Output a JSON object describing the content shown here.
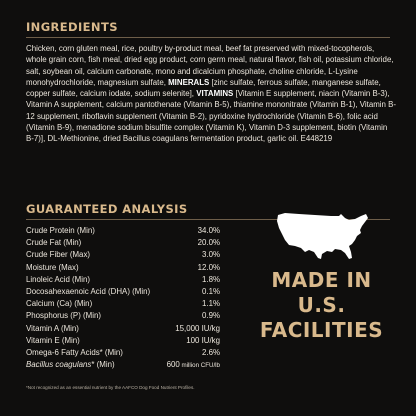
{
  "ingredients": {
    "heading": "INGREDIENTS",
    "text_1": "Chicken, corn gluten meal, rice, poultry by-product meal, beef fat preserved with mixed-tocopherols, whole grain corn, fish meal, dried egg product, corn germ meal, natural flavor, fish oil, potassium chloride, salt, soybean oil, calcium carbonate, mono and dicalcium phosphate, choline chloride, L-Lysine monohydrochloride, magnesium sulfate, ",
    "minerals_label": "MINERALS",
    "text_2": " [zinc sulfate, ferrous sulfate, manganese sulfate, copper sulfate, calcium iodate, sodium selenite], ",
    "vitamins_label": "VITAMINS",
    "text_3": " [Vitamin E supplement, niacin (Vitamin B-3), Vitamin A supplement, calcium pantothenate (Vitamin B-5), thiamine mononitrate (Vitamin B-1), Vitamin B-12 supplement, riboflavin supplement (Vitamin B-2), pyridoxine hydrochloride (Vitamin B-6), folic acid (Vitamin B-9), menadione sodium bisulfite complex (Vitamin K), Vitamin D-3 supplement, biotin (Vitamin B-7)], DL-Methionine, dried Bacillus coagulans fermentation product, garlic oil. E448219"
  },
  "analysis": {
    "heading": "GUARANTEED ANALYSIS",
    "rows": [
      {
        "label": "Crude Protein (Min)",
        "value": "34.0%"
      },
      {
        "label": "Crude Fat (Min)",
        "value": "20.0%"
      },
      {
        "label": "Crude Fiber (Max)",
        "value": "3.0%"
      },
      {
        "label": "Moisture (Max)",
        "value": "12.0%"
      },
      {
        "label": "Linoleic Acid (Min)",
        "value": "1.8%"
      },
      {
        "label": "Docosahexaenoic Acid (DHA) (Min)",
        "value": "0.1%"
      },
      {
        "label": "Calcium (Ca) (Min)",
        "value": "1.1%"
      },
      {
        "label": "Phosphorus (P) (Min)",
        "value": "0.9%"
      },
      {
        "label": "Vitamin A (Min)",
        "value": "15,000 IU/kg"
      },
      {
        "label": "Vitamin E (Min)",
        "value": "100 IU/kg"
      },
      {
        "label": "Omega-6 Fatty Acids* (Min)",
        "value": "2.6%"
      }
    ],
    "last_row": {
      "label_italic": "Bacillus coagulans",
      "label_suffix": "* (Min)",
      "value_num": "600",
      "value_unit": " million CFU/lb"
    },
    "footnote": "*Not recognized as an essential nutrient by the AAFCO Dog Food Nutrient Profiles."
  },
  "badge": {
    "icon": "usa-map-icon",
    "line_1": "MADE IN",
    "line_2": "U.S.",
    "line_3": "FACILITIES"
  },
  "colors": {
    "background": "#0f0e0d",
    "heading": "#d9b98c",
    "text": "#ece6dc",
    "rule": "#6e5e49"
  }
}
